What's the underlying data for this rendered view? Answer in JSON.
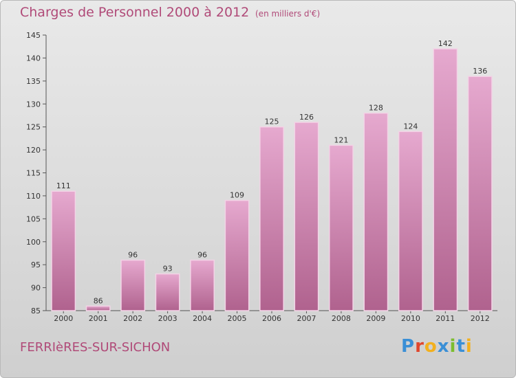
{
  "header": {
    "title": "Charges de Personnel 2000 à 2012",
    "subtitle": "(en milliers d'€)"
  },
  "footer": {
    "commune": "FERRIèRES-SUR-SICHON",
    "logo_text": "Proxiti",
    "logo_colors": [
      "#3a8fd6",
      "#e0462c",
      "#f2b01e",
      "#3a8fd6",
      "#7cbd2f",
      "#3a8fd6",
      "#f2b01e"
    ]
  },
  "colors": {
    "bar_top": "#e6a9cf",
    "bar_bottom": "#b0628e",
    "bar_edge": "#f3d3e6",
    "accent": "#b04a78"
  },
  "chart_data": {
    "type": "bar",
    "title": "Charges de Personnel 2000 à 2012",
    "subtitle": "(en milliers d'€)",
    "categories": [
      "2000",
      "2001",
      "2002",
      "2003",
      "2004",
      "2005",
      "2006",
      "2007",
      "2008",
      "2009",
      "2010",
      "2011",
      "2012"
    ],
    "values": [
      111,
      86,
      96,
      93,
      96,
      109,
      125,
      126,
      121,
      128,
      124,
      142,
      136
    ],
    "ylim": [
      85,
      145
    ],
    "yticks": [
      85,
      90,
      95,
      100,
      105,
      110,
      115,
      120,
      125,
      130,
      135,
      140,
      145
    ],
    "grid": false,
    "data_labels": true
  }
}
